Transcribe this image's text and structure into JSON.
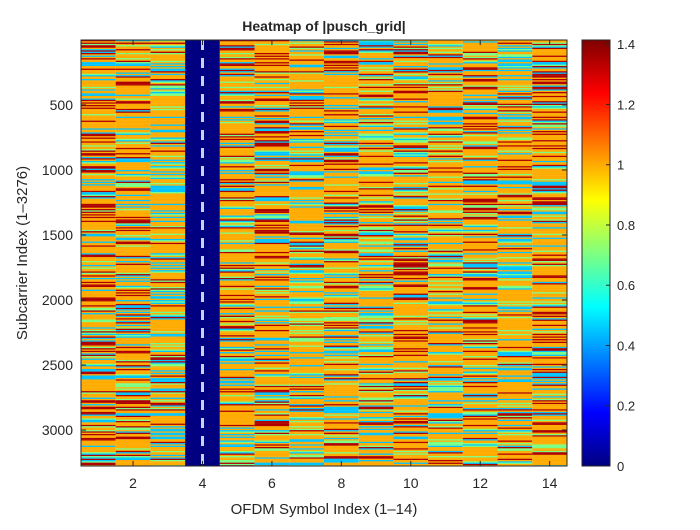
{
  "chart_data": {
    "type": "heatmap",
    "title": "Heatmap of |pusch_grid|",
    "xlabel": "OFDM Symbol Index (1–14)",
    "ylabel": "Subcarrier Index (1–3276)",
    "x": [
      1,
      2,
      3,
      4,
      5,
      6,
      7,
      8,
      9,
      10,
      11,
      12,
      13,
      14
    ],
    "xlim": [
      0.5,
      14.5
    ],
    "ylim": [
      0.5,
      3276.5
    ],
    "y_direction": "reverse",
    "x_ticks": [
      2,
      4,
      6,
      8,
      10,
      12,
      14
    ],
    "y_ticks": [
      500,
      1000,
      1500,
      2000,
      2500,
      3000
    ],
    "colormap": "jet",
    "clim": [
      0,
      1.414
    ],
    "colorbar_ticks": [
      0,
      0.2,
      0.4,
      0.6,
      0.8,
      1,
      1.2,
      1.4
    ],
    "column_levels": [
      {
        "symbol": 1,
        "dominant_values": [
          1.0,
          1.35,
          0.45,
          0.7
        ]
      },
      {
        "symbol": 2,
        "dominant_values": [
          1.0,
          1.35,
          0.45,
          0.7
        ]
      },
      {
        "symbol": 3,
        "dominant_values": [
          1.0,
          0.45,
          0.7,
          1.35
        ]
      },
      {
        "symbol": 4,
        "dominant_values": [
          0.0
        ],
        "note": "DMRS symbol, near-zero magnitude"
      },
      {
        "symbol": 5,
        "dominant_values": [
          1.0,
          1.35,
          0.45,
          0.7
        ]
      },
      {
        "symbol": 6,
        "dominant_values": [
          1.0,
          1.35,
          0.45,
          0.7
        ]
      },
      {
        "symbol": 7,
        "dominant_values": [
          1.0,
          0.45,
          0.7,
          1.35
        ]
      },
      {
        "symbol": 8,
        "dominant_values": [
          1.0,
          1.35,
          0.45,
          0.7
        ]
      },
      {
        "symbol": 9,
        "dominant_values": [
          1.0,
          0.45,
          0.7,
          1.35
        ]
      },
      {
        "symbol": 10,
        "dominant_values": [
          1.0,
          1.35,
          0.45,
          0.7
        ]
      },
      {
        "symbol": 11,
        "dominant_values": [
          1.0,
          0.45,
          0.7,
          1.35
        ]
      },
      {
        "symbol": 12,
        "dominant_values": [
          1.0,
          1.35,
          0.45,
          0.7
        ]
      },
      {
        "symbol": 13,
        "dominant_values": [
          1.0,
          0.45,
          0.7,
          1.35
        ]
      },
      {
        "symbol": 14,
        "dominant_values": [
          1.0,
          1.35,
          0.45,
          0.7
        ]
      }
    ],
    "dashed_marker_symbol": 4,
    "dashed_marker_color": "#c6d3ec"
  }
}
